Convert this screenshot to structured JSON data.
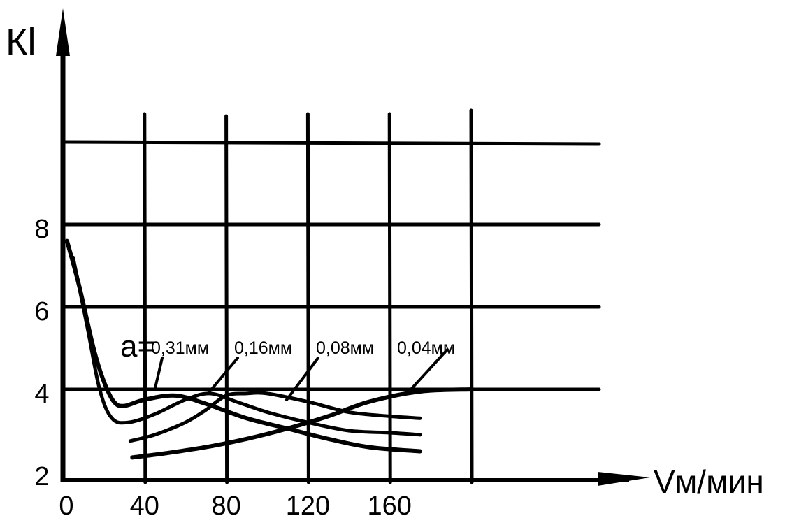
{
  "chart_data": {
    "type": "line",
    "title": "",
    "ylabel": "Кl",
    "xlabel": "Vм/мин",
    "xticks": [
      "0",
      "40",
      "80",
      "120",
      "160"
    ],
    "yticks": [
      "2",
      "4",
      "6",
      "8"
    ],
    "xlim": [
      0,
      260
    ],
    "ylim": [
      2,
      12
    ],
    "grid": true,
    "legend_prefix": "a=",
    "series": [
      {
        "name": "0,31мм",
        "x": [
          2,
          8,
          15,
          20,
          25,
          30,
          40,
          55,
          70,
          90,
          110,
          130,
          150,
          175
        ],
        "y": [
          7.6,
          6.5,
          5.0,
          4.2,
          3.7,
          3.6,
          3.75,
          3.85,
          3.65,
          3.3,
          3.05,
          2.8,
          2.6,
          2.5
        ]
      },
      {
        "name": "0,16мм",
        "x": [
          5,
          12,
          18,
          24,
          32,
          45,
          60,
          72,
          85,
          100,
          120,
          140,
          160,
          175
        ],
        "y": [
          7.2,
          5.5,
          4.0,
          3.3,
          3.2,
          3.4,
          3.75,
          3.9,
          3.7,
          3.45,
          3.2,
          3.0,
          2.95,
          2.9
        ]
      },
      {
        "name": "0,08мм",
        "x": [
          33,
          45,
          60,
          70,
          80,
          90,
          100,
          120,
          140,
          160,
          175
        ],
        "y": [
          2.75,
          2.9,
          3.2,
          3.5,
          3.85,
          3.9,
          3.9,
          3.7,
          3.45,
          3.35,
          3.3
        ]
      },
      {
        "name": "0,04мм",
        "x": [
          34,
          50,
          70,
          90,
          110,
          130,
          150,
          175,
          200
        ],
        "y": [
          2.35,
          2.45,
          2.6,
          2.8,
          3.05,
          3.35,
          3.7,
          3.95,
          4.0
        ]
      }
    ],
    "annotations": [
      {
        "series": 0,
        "label": "0,31мм"
      },
      {
        "series": 1,
        "label": "0,16мм"
      },
      {
        "series": 2,
        "label": "0,08мм"
      },
      {
        "series": 3,
        "label": "0,04мм"
      }
    ]
  }
}
